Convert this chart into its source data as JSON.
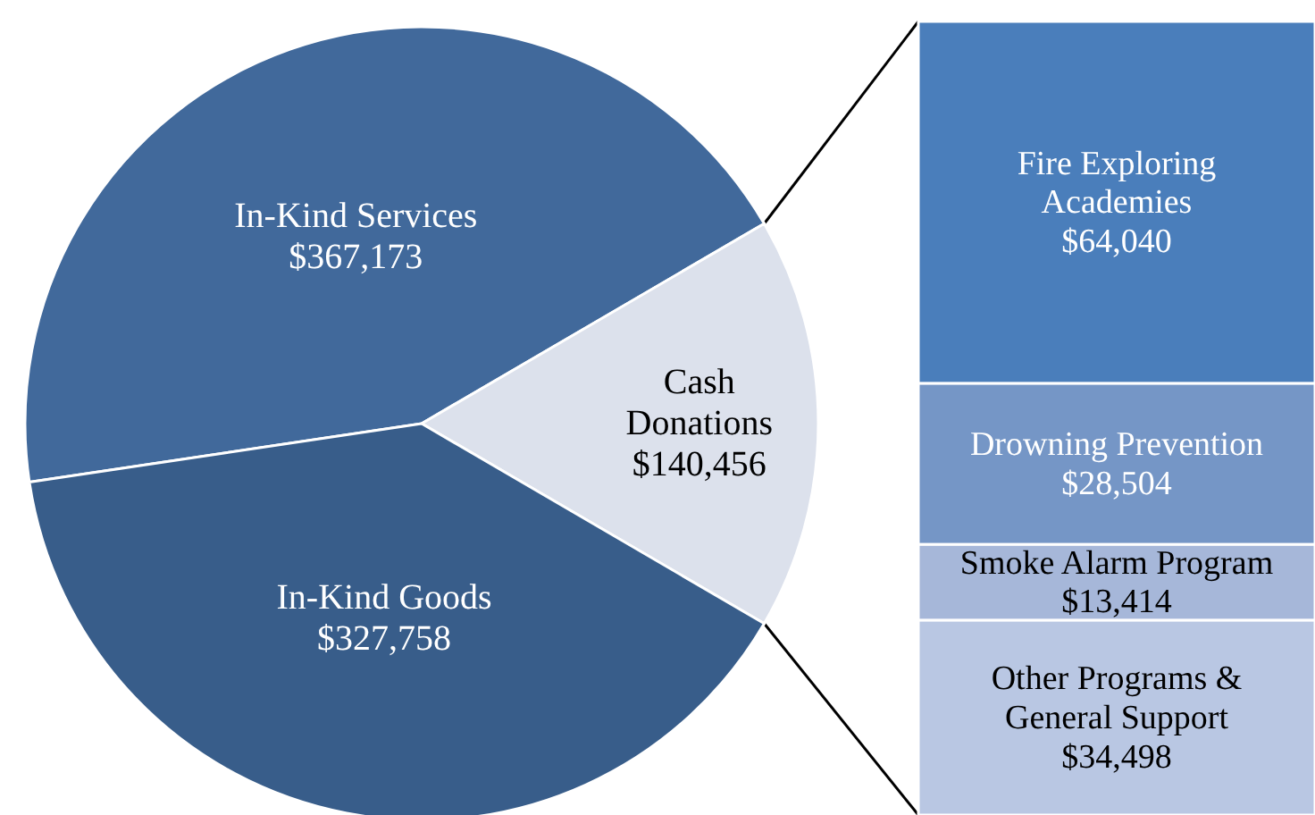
{
  "chart_data": [
    {
      "type": "pie",
      "categories": [
        "In-Kind Services",
        "Cash Donations",
        "In-Kind Goods"
      ],
      "values": [
        367173,
        140456,
        327758
      ],
      "value_labels": [
        "$367,173",
        "$140,456",
        "$327,758"
      ],
      "colors": [
        "#41699b",
        "#dce1ec",
        "#385d8a"
      ]
    },
    {
      "type": "bar",
      "stacked": true,
      "categories": [
        null
      ],
      "series": [
        {
          "name": "Other Programs & General Support",
          "color": "#b9c7e3",
          "values": [
            34498
          ],
          "value_labels": [
            "$34,498"
          ]
        },
        {
          "name": "Smoke Alarm Program",
          "color": "#a6b7d9",
          "values": [
            13414
          ],
          "value_labels": [
            "$13,414"
          ]
        },
        {
          "name": "Drowning Prevention",
          "color": "#7596c6",
          "values": [
            28504
          ],
          "value_labels": [
            "$28,504"
          ]
        },
        {
          "name": "Fire Exploring Academies",
          "color": "#4a7ebb",
          "values": [
            64040
          ],
          "value_labels": [
            "$64,040"
          ]
        }
      ]
    }
  ]
}
